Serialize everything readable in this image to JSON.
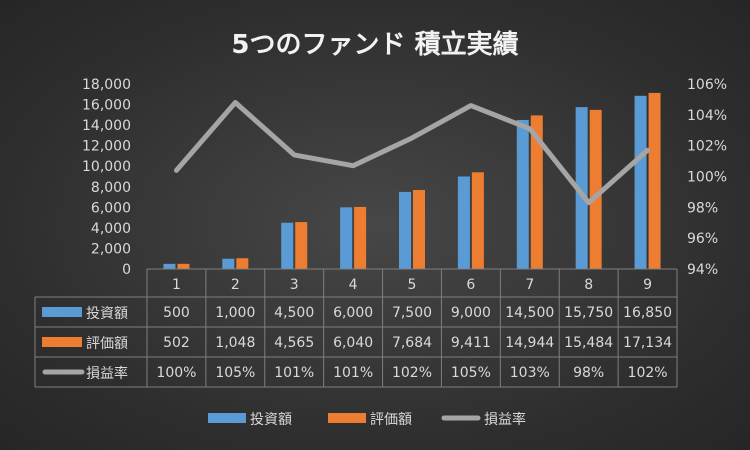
{
  "chart_data": {
    "type": "bar+line",
    "title": "5つのファンド 積立実績",
    "categories": [
      "1",
      "2",
      "3",
      "4",
      "5",
      "6",
      "7",
      "8",
      "9"
    ],
    "series": [
      {
        "name": "投資額",
        "type": "bar",
        "axis": "left",
        "color": "#5b9bd5",
        "values": [
          500,
          1000,
          4500,
          6000,
          7500,
          9000,
          14500,
          15750,
          16850
        ],
        "labels": [
          "500",
          "1,000",
          "4,500",
          "6,000",
          "7,500",
          "9,000",
          "14,500",
          "15,750",
          "16,850"
        ]
      },
      {
        "name": "評価額",
        "type": "bar",
        "axis": "left",
        "color": "#ed7d31",
        "values": [
          502,
          1048,
          4565,
          6040,
          7684,
          9411,
          14944,
          15484,
          17134
        ],
        "labels": [
          "502",
          "1,048",
          "4,565",
          "6,040",
          "7,684",
          "9,411",
          "14,944",
          "15,484",
          "17,134"
        ]
      },
      {
        "name": "損益率",
        "type": "line",
        "axis": "right",
        "color": "#a5a5a5",
        "values": [
          100.4,
          104.8,
          101.4,
          100.7,
          102.5,
          104.6,
          103.1,
          98.3,
          101.7
        ],
        "labels": [
          "100%",
          "105%",
          "101%",
          "101%",
          "102%",
          "105%",
          "103%",
          "98%",
          "102%"
        ]
      }
    ],
    "y_left": {
      "min": 0,
      "max": 18000,
      "ticks": [
        "0",
        "2,000",
        "4,000",
        "6,000",
        "8,000",
        "10,000",
        "12,000",
        "14,000",
        "16,000",
        "18,000"
      ]
    },
    "y_right": {
      "min": 94,
      "max": 106,
      "ticks": [
        "94%",
        "96%",
        "98%",
        "100%",
        "102%",
        "104%",
        "106%"
      ]
    },
    "grid": false,
    "legend": "bottom",
    "data_table": true
  }
}
